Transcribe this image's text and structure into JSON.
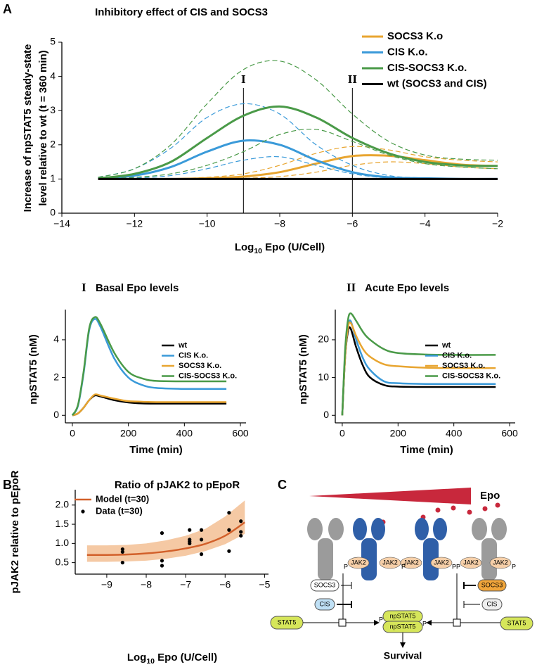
{
  "chart_data": [
    {
      "panel": "A",
      "type": "line",
      "title": "Inhibitory effect of CIS and SOCS3",
      "x_label": [
        "Log",
        "10",
        " Epo (U/Cell)"
      ],
      "y_label": [
        "Increase of npSTAT5 steady-state",
        "level relative to wt (t = 360 min)"
      ],
      "x": [
        -13,
        -12,
        -11,
        -10,
        -9,
        -8,
        -7,
        -6,
        -5,
        -4,
        -3,
        -2
      ],
      "xlim": [
        -14,
        -2
      ],
      "xticks": [
        {
          "value": -14,
          "label": "−14"
        },
        {
          "value": -12,
          "label": "−12"
        },
        {
          "value": -10,
          "label": "−10"
        },
        {
          "value": -8,
          "label": "−8"
        },
        {
          "value": -6,
          "label": "−6"
        },
        {
          "value": -4,
          "label": "−4"
        },
        {
          "value": -2,
          "label": "−2"
        }
      ],
      "ylim": [
        0,
        5
      ],
      "yticks": [
        0,
        1,
        2,
        3,
        4,
        5
      ],
      "bounds_style": "dashed",
      "vlines": [
        {
          "x": -9,
          "label": "I"
        },
        {
          "x": -6,
          "label": "II"
        }
      ],
      "series": [
        {
          "name": "SOCS3 K.o",
          "color": "#e8a530",
          "values": [
            1,
            1,
            1,
            1.02,
            1.07,
            1.2,
            1.45,
            1.67,
            1.68,
            1.55,
            1.42,
            1.38
          ],
          "lower": [
            1,
            1,
            1,
            1,
            1.02,
            1.07,
            1.2,
            1.4,
            1.5,
            1.45,
            1.35,
            1.3
          ],
          "upper": [
            1,
            1,
            1.01,
            1.05,
            1.15,
            1.4,
            1.75,
            1.95,
            1.85,
            1.65,
            1.55,
            1.5
          ]
        },
        {
          "name": "CIS K.o.",
          "color": "#3a9ad9",
          "values": [
            1.02,
            1.1,
            1.35,
            1.8,
            2.12,
            2.0,
            1.55,
            1.2,
            1.05,
            1.02,
            1.0,
            1.0
          ],
          "lower": [
            1.0,
            1.03,
            1.1,
            1.3,
            1.55,
            1.65,
            1.4,
            1.15,
            1.03,
            1.0,
            1.0,
            1.0
          ],
          "upper": [
            1.05,
            1.3,
            1.9,
            2.8,
            3.2,
            2.9,
            2.0,
            1.4,
            1.1,
            1.03,
            1.0,
            1.0
          ]
        },
        {
          "name": "CIS-SOCS3 K.o.",
          "color": "#4a9a48",
          "values": [
            1.02,
            1.15,
            1.5,
            2.2,
            2.85,
            3.12,
            2.8,
            2.2,
            1.75,
            1.5,
            1.4,
            1.38
          ],
          "lower": [
            1.0,
            1.05,
            1.15,
            1.4,
            1.8,
            2.3,
            2.45,
            2.1,
            1.7,
            1.45,
            1.35,
            1.3
          ],
          "upper": [
            1.05,
            1.3,
            2.0,
            3.2,
            4.2,
            4.45,
            3.9,
            2.9,
            2.1,
            1.7,
            1.58,
            1.55
          ]
        },
        {
          "name": "wt (SOCS3 and CIS)",
          "color": "#000000",
          "values": [
            1,
            1,
            1,
            1,
            1,
            1,
            1,
            1,
            1,
            1,
            1,
            1
          ]
        }
      ]
    },
    {
      "panel": "I",
      "type": "line",
      "title": "Basal Epo levels",
      "x_label": "Time (min)",
      "y_label": "npSTAT5 (nM)",
      "x": [
        0,
        20,
        40,
        60,
        80,
        100,
        150,
        200,
        250,
        300,
        400,
        550
      ],
      "xlim": [
        -25,
        620
      ],
      "xticks": [
        0,
        200,
        400,
        600
      ],
      "ylim": [
        -0.4,
        5.6
      ],
      "yticks": [
        0,
        2,
        4
      ],
      "series": [
        {
          "name": "wt",
          "color": "#000000",
          "values": [
            0,
            0.1,
            0.4,
            0.8,
            1.05,
            1.0,
            0.8,
            0.68,
            0.63,
            0.62,
            0.62,
            0.62
          ]
        },
        {
          "name": "CIS K.o.",
          "color": "#3a9ad9",
          "values": [
            0,
            0.5,
            2.2,
            4.5,
            5.1,
            4.7,
            3.0,
            2.0,
            1.6,
            1.45,
            1.4,
            1.4
          ]
        },
        {
          "name": "SOCS3 K.o.",
          "color": "#e8a530",
          "values": [
            0,
            0.1,
            0.4,
            0.8,
            1.1,
            1.05,
            0.88,
            0.75,
            0.72,
            0.7,
            0.7,
            0.7
          ]
        },
        {
          "name": "CIS-SOCS3 K.o.",
          "color": "#4a9a48",
          "values": [
            0,
            0.55,
            2.3,
            4.6,
            5.2,
            4.85,
            3.3,
            2.3,
            1.95,
            1.82,
            1.8,
            1.8
          ]
        }
      ]
    },
    {
      "panel": "II",
      "type": "line",
      "title": "Acute Epo levels",
      "x_label": "Time (min)",
      "y_label": "npSTAT5 (nM)",
      "x": [
        0,
        10,
        20,
        30,
        50,
        75,
        100,
        150,
        200,
        300,
        400,
        550
      ],
      "xlim": [
        -25,
        620
      ],
      "xticks": [
        0,
        200,
        400,
        600
      ],
      "ylim": [
        -2,
        28
      ],
      "yticks": [
        0,
        10,
        20
      ],
      "series": [
        {
          "name": "wt",
          "color": "#000000",
          "values": [
            0,
            15,
            22,
            23,
            18,
            13,
            10,
            8,
            7.6,
            7.5,
            7.5,
            7.5
          ]
        },
        {
          "name": "CIS K.o.",
          "color": "#3a9ad9",
          "values": [
            0,
            15,
            23,
            25,
            20,
            15,
            12,
            9,
            8.5,
            8.3,
            8.3,
            8.3
          ]
        },
        {
          "name": "SOCS3 K.o.",
          "color": "#e8a530",
          "values": [
            0,
            15,
            23,
            24.5,
            21,
            17.5,
            15.5,
            13.5,
            13,
            12.6,
            12.5,
            12.5
          ]
        },
        {
          "name": "CIS-SOCS3 K.o.",
          "color": "#4a9a48",
          "values": [
            0,
            17,
            25,
            27,
            25,
            22,
            20,
            17.5,
            16.5,
            16.1,
            16,
            16
          ]
        }
      ]
    },
    {
      "panel": "B",
      "type": "line",
      "title": "Ratio of pJAK2 to pEpoR",
      "x_label": [
        "Log",
        "10",
        " Epo (U/Cell)"
      ],
      "y_label": "pJAK2 relative to pEpoR",
      "xlim": [
        -9.8,
        -4.9
      ],
      "xticks": [
        {
          "value": -9,
          "label": "−9"
        },
        {
          "value": -8,
          "label": "−8"
        },
        {
          "value": -7,
          "label": "−7"
        },
        {
          "value": -6,
          "label": "−6"
        },
        {
          "value": -5,
          "label": "−5"
        }
      ],
      "ylim": [
        0.2,
        2.4
      ],
      "yticks": [
        0.5,
        {
          "value": 1,
          "label": "1.0"
        },
        1.5,
        {
          "value": 2,
          "label": "2.0"
        }
      ],
      "bounds_style": "band",
      "band_color": "#f5c9a4",
      "series": [
        {
          "name": "Model (t=30)",
          "type": "line",
          "color": "#d2602a",
          "x": [
            -9.5,
            -9,
            -8.5,
            -8,
            -7.5,
            -7,
            -6.5,
            -6,
            -5.5
          ],
          "values": [
            0.7,
            0.7,
            0.71,
            0.74,
            0.79,
            0.87,
            0.99,
            1.2,
            1.55
          ],
          "lower": [
            0.52,
            0.52,
            0.53,
            0.55,
            0.6,
            0.68,
            0.8,
            0.98,
            1.25
          ],
          "upper": [
            0.95,
            0.95,
            0.96,
            1.0,
            1.08,
            1.2,
            1.38,
            1.7,
            2.12
          ]
        },
        {
          "name": "Data (t=30)",
          "type": "scatter",
          "color": "#000000",
          "x": [
            -8.6,
            -8.6,
            -8.6,
            -7.6,
            -7.6,
            -7.6,
            -6.9,
            -6.9,
            -6.9,
            -6.9,
            -6.6,
            -6.6,
            -6.6,
            -5.9,
            -5.9,
            -5.9,
            -5.6,
            -5.6,
            -5.6
          ],
          "values": [
            0.85,
            0.78,
            0.5,
            1.27,
            0.55,
            0.42,
            1.35,
            1.1,
            1.05,
            1.0,
            1.35,
            1.1,
            0.72,
            1.8,
            1.35,
            0.8,
            1.58,
            1.3,
            1.2
          ]
        }
      ]
    }
  ],
  "diagram": {
    "panel": "C",
    "ligand": "Epo",
    "jak2": [
      "JAK2",
      "JAK2",
      "JAK2",
      "JAK2",
      "JAK2",
      "JAK2"
    ],
    "phospho": [
      "P",
      "P",
      "P",
      "PP",
      "P"
    ],
    "left": {
      "socs3": "SOCS3",
      "cis": "CIS",
      "stat5": "STAT5"
    },
    "right": {
      "socs3": "SOCS3",
      "cis": "CIS",
      "stat5": "STAT5"
    },
    "product": [
      "npSTAT5",
      "npSTAT5"
    ],
    "product_phospho": [
      "P",
      "P"
    ],
    "outcome": "Survival"
  }
}
